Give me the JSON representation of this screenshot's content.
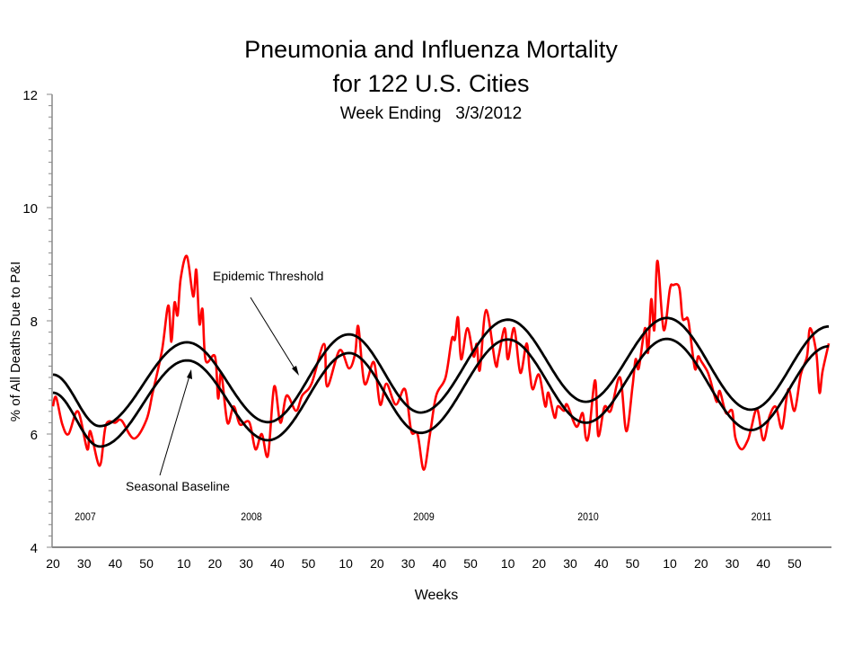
{
  "chart_data": {
    "type": "line",
    "title": "Pneumonia and Influenza Mortality",
    "title_line2": "for 122 U.S. Cities",
    "subtitle": "Week Ending   3/3/2012",
    "xlabel": "Weeks",
    "ylabel": "% of All Deaths Due to P&I",
    "ylim": [
      4,
      12
    ],
    "y_ticks": [
      "12",
      "10",
      "8",
      "6",
      "4"
    ],
    "y_minor_step": 0.2,
    "x_range": [
      "2007-20",
      "2012-09"
    ],
    "x_ticks": [
      "20",
      "30",
      "40",
      "50",
      "10",
      "20",
      "30",
      "40",
      "50",
      "10",
      "20",
      "30",
      "40",
      "50",
      "10",
      "20",
      "30",
      "40",
      "50",
      "10",
      "20",
      "30",
      "40",
      "50"
    ],
    "year_labels": [
      "2007",
      "2008",
      "2009",
      "2010",
      "2011"
    ],
    "grid": false,
    "annotations": [
      {
        "text": "Epidemic Threshold",
        "target": "threshold"
      },
      {
        "text": "Seasonal Baseline",
        "target": "baseline"
      }
    ],
    "colors": {
      "observed": "#ff0000",
      "baseline": "#000000",
      "threshold": "#000000"
    },
    "series": [
      {
        "id": "observed",
        "points": [
          [
            "2007-20",
            6.49
          ],
          [
            "2007-21",
            6.65
          ],
          [
            "2007-23",
            6.17
          ],
          [
            "2007-25",
            6.0
          ],
          [
            "2007-28",
            6.4
          ],
          [
            "2007-31",
            5.73
          ],
          [
            "2007-32",
            6.05
          ],
          [
            "2007-35",
            5.44
          ],
          [
            "2007-37",
            6.16
          ],
          [
            "2007-40",
            6.2
          ],
          [
            "2007-42",
            6.24
          ],
          [
            "2007-46",
            5.92
          ],
          [
            "2007-50",
            6.25
          ],
          [
            "2007-52",
            6.73
          ],
          [
            "2008-03",
            7.48
          ],
          [
            "2008-05",
            8.27
          ],
          [
            "2008-06",
            7.63
          ],
          [
            "2008-07",
            8.32
          ],
          [
            "2008-08",
            8.1
          ],
          [
            "2008-09",
            8.75
          ],
          [
            "2008-11",
            9.14
          ],
          [
            "2008-13",
            8.43
          ],
          [
            "2008-14",
            8.9
          ],
          [
            "2008-15",
            7.95
          ],
          [
            "2008-16",
            8.2
          ],
          [
            "2008-17",
            7.3
          ],
          [
            "2008-20",
            7.37
          ],
          [
            "2008-21",
            6.63
          ],
          [
            "2008-22",
            7.08
          ],
          [
            "2008-24",
            6.2
          ],
          [
            "2008-26",
            6.49
          ],
          [
            "2008-28",
            6.17
          ],
          [
            "2008-31",
            6.21
          ],
          [
            "2008-33",
            5.73
          ],
          [
            "2008-35",
            6.0
          ],
          [
            "2008-37",
            5.62
          ],
          [
            "2008-39",
            6.84
          ],
          [
            "2008-41",
            6.2
          ],
          [
            "2008-43",
            6.68
          ],
          [
            "2008-46",
            6.41
          ],
          [
            "2008-48",
            6.68
          ],
          [
            "2008-51",
            6.89
          ],
          [
            "2009-03",
            7.59
          ],
          [
            "2009-04",
            6.84
          ],
          [
            "2009-08",
            7.48
          ],
          [
            "2009-11",
            7.16
          ],
          [
            "2009-13",
            7.43
          ],
          [
            "2009-14",
            7.9
          ],
          [
            "2009-16",
            6.89
          ],
          [
            "2009-19",
            7.27
          ],
          [
            "2009-21",
            6.52
          ],
          [
            "2009-23",
            6.89
          ],
          [
            "2009-26",
            6.52
          ],
          [
            "2009-29",
            6.79
          ],
          [
            "2009-31",
            6.05
          ],
          [
            "2009-33",
            6.0
          ],
          [
            "2009-35",
            5.37
          ],
          [
            "2009-37",
            6.0
          ],
          [
            "2009-39",
            6.68
          ],
          [
            "2009-42",
            7.0
          ],
          [
            "2009-44",
            7.68
          ],
          [
            "2009-45",
            7.67
          ],
          [
            "2009-46",
            8.06
          ],
          [
            "2009-47",
            7.32
          ],
          [
            "2009-49",
            7.87
          ],
          [
            "2009-51",
            7.37
          ],
          [
            "2009-52",
            7.59
          ],
          [
            "2010-01",
            7.13
          ],
          [
            "2010-03",
            8.19
          ],
          [
            "2010-06",
            7.24
          ],
          [
            "2010-07",
            7.37
          ],
          [
            "2010-09",
            7.87
          ],
          [
            "2010-10",
            7.32
          ],
          [
            "2010-12",
            7.87
          ],
          [
            "2010-14",
            7.08
          ],
          [
            "2010-16",
            7.6
          ],
          [
            "2010-17",
            7.11
          ],
          [
            "2010-18",
            6.79
          ],
          [
            "2010-20",
            7.05
          ],
          [
            "2010-22",
            6.49
          ],
          [
            "2010-23",
            6.73
          ],
          [
            "2010-25",
            6.29
          ],
          [
            "2010-26",
            6.49
          ],
          [
            "2010-28",
            6.41
          ],
          [
            "2010-29",
            6.52
          ],
          [
            "2010-32",
            6.13
          ],
          [
            "2010-34",
            6.37
          ],
          [
            "2010-35",
            5.94
          ],
          [
            "2010-36",
            6.0
          ],
          [
            "2010-38",
            6.95
          ],
          [
            "2010-39",
            5.97
          ],
          [
            "2010-41",
            6.48
          ],
          [
            "2010-43",
            6.41
          ],
          [
            "2010-46",
            7.0
          ],
          [
            "2010-48",
            6.05
          ],
          [
            "2010-50",
            6.84
          ],
          [
            "2010-51",
            7.32
          ],
          [
            "2010-52",
            7.16
          ],
          [
            "2011-02",
            7.87
          ],
          [
            "2011-03",
            7.44
          ],
          [
            "2011-04",
            8.38
          ],
          [
            "2011-05",
            7.84
          ],
          [
            "2011-06",
            9.06
          ],
          [
            "2011-08",
            7.84
          ],
          [
            "2011-10",
            8.56
          ],
          [
            "2011-11",
            8.63
          ],
          [
            "2011-13",
            8.59
          ],
          [
            "2011-14",
            8.06
          ],
          [
            "2011-15",
            8.03
          ],
          [
            "2011-16",
            7.98
          ],
          [
            "2011-18",
            7.16
          ],
          [
            "2011-19",
            7.37
          ],
          [
            "2011-20",
            7.29
          ],
          [
            "2011-22",
            7.11
          ],
          [
            "2011-23",
            6.95
          ],
          [
            "2011-25",
            6.57
          ],
          [
            "2011-26",
            6.76
          ],
          [
            "2011-28",
            6.37
          ],
          [
            "2011-30",
            6.41
          ],
          [
            "2011-31",
            5.94
          ],
          [
            "2011-33",
            5.73
          ],
          [
            "2011-35",
            5.89
          ],
          [
            "2011-36",
            6.08
          ],
          [
            "2011-38",
            6.44
          ],
          [
            "2011-40",
            5.89
          ],
          [
            "2011-42",
            6.32
          ],
          [
            "2011-44",
            6.48
          ],
          [
            "2011-46",
            6.1
          ],
          [
            "2011-48",
            6.79
          ],
          [
            "2011-50",
            6.41
          ],
          [
            "2011-52",
            7.05
          ],
          [
            "2012-02",
            7.37
          ],
          [
            "2012-03",
            7.87
          ],
          [
            "2012-05",
            7.43
          ],
          [
            "2012-06",
            6.73
          ],
          [
            "2012-07",
            7.11
          ],
          [
            "2012-09",
            7.6
          ]
        ]
      },
      {
        "id": "baseline",
        "name": "Seasonal Baseline",
        "points": [
          [
            "2007-20",
            6.73
          ],
          [
            "2007-35",
            5.78
          ],
          [
            "2008-11",
            7.3
          ],
          [
            "2008-37",
            5.89
          ],
          [
            "2009-11",
            7.43
          ],
          [
            "2009-34",
            6.02
          ],
          [
            "2010-10",
            7.67
          ],
          [
            "2010-35",
            6.2
          ],
          [
            "2011-09",
            7.68
          ],
          [
            "2011-36",
            6.07
          ],
          [
            "2012-09",
            7.55
          ]
        ]
      },
      {
        "id": "threshold",
        "name": "Epidemic Threshold",
        "points": [
          [
            "2007-20",
            7.05
          ],
          [
            "2007-35",
            6.14
          ],
          [
            "2008-11",
            7.62
          ],
          [
            "2008-37",
            6.21
          ],
          [
            "2009-11",
            7.76
          ],
          [
            "2009-34",
            6.38
          ],
          [
            "2010-10",
            8.02
          ],
          [
            "2010-35",
            6.57
          ],
          [
            "2011-09",
            8.05
          ],
          [
            "2011-36",
            6.43
          ],
          [
            "2012-09",
            7.9
          ]
        ]
      }
    ]
  }
}
